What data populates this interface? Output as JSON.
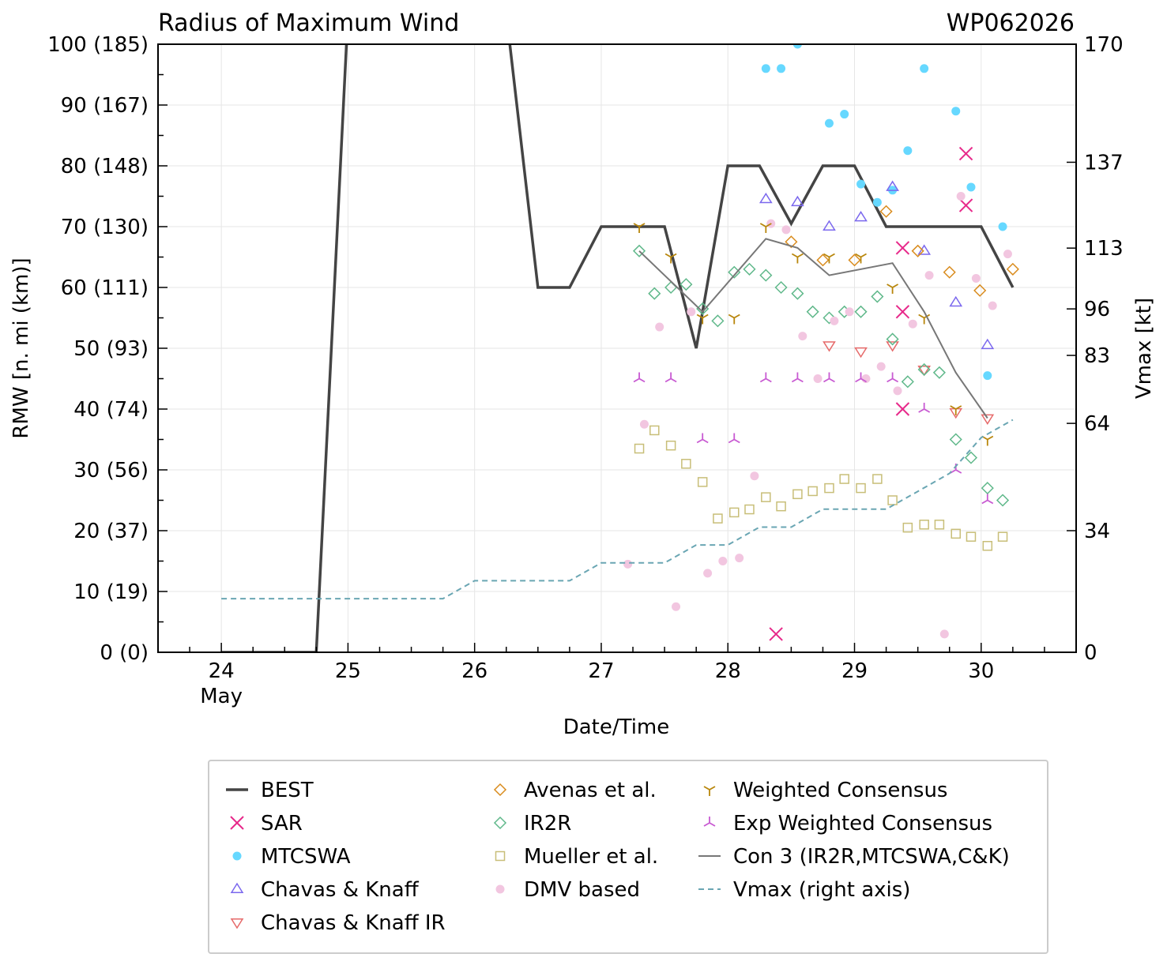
{
  "chart_data": {
    "type": "line",
    "title": "Radius of Maximum Wind",
    "title_right": "WP062026",
    "xlabel": "Date/Time",
    "ylabel": "RMW [n. mi (km)]",
    "ylabel_right": "Vmax [kt]",
    "x_units": "days (24 May = 24.0)",
    "xlim": [
      23.5,
      30.75
    ],
    "ylim": [
      0,
      100
    ],
    "ylim_right": [
      0,
      170
    ],
    "grid": true,
    "legend_position": "bottom",
    "x_ticks": [
      {
        "value": 24,
        "label": "24",
        "sublabel": "May"
      },
      {
        "value": 25,
        "label": "25",
        "sublabel": ""
      },
      {
        "value": 26,
        "label": "26",
        "sublabel": ""
      },
      {
        "value": 27,
        "label": "27",
        "sublabel": ""
      },
      {
        "value": 28,
        "label": "28",
        "sublabel": ""
      },
      {
        "value": 29,
        "label": "29",
        "sublabel": ""
      },
      {
        "value": 30,
        "label": "30",
        "sublabel": ""
      }
    ],
    "y_ticks_left": [
      {
        "value": 0,
        "label": "0 (0)"
      },
      {
        "value": 10,
        "label": "10 (19)"
      },
      {
        "value": 20,
        "label": "20 (37)"
      },
      {
        "value": 30,
        "label": "30 (56)"
      },
      {
        "value": 40,
        "label": "40 (74)"
      },
      {
        "value": 50,
        "label": "50 (93)"
      },
      {
        "value": 60,
        "label": "60 (111)"
      },
      {
        "value": 70,
        "label": "70 (130)"
      },
      {
        "value": 80,
        "label": "80 (148)"
      },
      {
        "value": 90,
        "label": "90 (167)"
      },
      {
        "value": 100,
        "label": "100 (185)"
      }
    ],
    "y_ticks_right": [
      {
        "value": 0,
        "label": "0"
      },
      {
        "value": 34,
        "label": "34"
      },
      {
        "value": 64,
        "label": "64"
      },
      {
        "value": 83,
        "label": "83"
      },
      {
        "value": 96,
        "label": "96"
      },
      {
        "value": 113,
        "label": "113"
      },
      {
        "value": 137,
        "label": "137"
      },
      {
        "value": 170,
        "label": "170"
      }
    ],
    "series": [
      {
        "name": "BEST",
        "kind": "line",
        "color": "#444444",
        "width": 3.5,
        "points": [
          [
            24.0,
            0
          ],
          [
            24.75,
            0
          ],
          [
            25.0,
            105
          ],
          [
            26.25,
            105
          ],
          [
            26.5,
            60
          ],
          [
            26.75,
            60
          ],
          [
            27.0,
            70
          ],
          [
            27.5,
            70
          ],
          [
            27.75,
            50
          ],
          [
            28.0,
            80
          ],
          [
            28.25,
            80
          ],
          [
            28.5,
            70.5
          ],
          [
            28.75,
            80
          ],
          [
            29.0,
            80
          ],
          [
            29.25,
            70
          ],
          [
            30.0,
            70
          ],
          [
            30.25,
            60
          ]
        ]
      },
      {
        "name": "SAR",
        "kind": "marker",
        "marker": "x",
        "color": "#e7298a",
        "points": [
          [
            28.38,
            3
          ],
          [
            29.38,
            66.5
          ],
          [
            29.38,
            56
          ],
          [
            29.38,
            40
          ],
          [
            29.88,
            82
          ],
          [
            29.88,
            73.5
          ]
        ]
      },
      {
        "name": "MTCSWA",
        "kind": "marker",
        "marker": "dot",
        "color": "#66d8ff",
        "points": [
          [
            28.3,
            96
          ],
          [
            28.42,
            96
          ],
          [
            28.55,
            100
          ],
          [
            28.8,
            87
          ],
          [
            28.92,
            88.5
          ],
          [
            29.05,
            77
          ],
          [
            29.18,
            74
          ],
          [
            29.3,
            76
          ],
          [
            29.42,
            82.5
          ],
          [
            29.55,
            96
          ],
          [
            29.8,
            89
          ],
          [
            29.92,
            76.5
          ],
          [
            30.05,
            45.5
          ],
          [
            30.17,
            70
          ]
        ]
      },
      {
        "name": "Chavas & Knaff",
        "kind": "marker",
        "marker": "tri-up",
        "color": "#7b68ee",
        "points": [
          [
            28.3,
            74.5
          ],
          [
            28.55,
            74
          ],
          [
            28.8,
            70
          ],
          [
            29.05,
            71.5
          ],
          [
            29.3,
            76.5
          ],
          [
            29.55,
            66
          ],
          [
            29.8,
            57.5
          ],
          [
            30.05,
            50.5
          ]
        ]
      },
      {
        "name": "Chavas & Knaff IR",
        "kind": "marker",
        "marker": "tri-down",
        "color": "#e66a6a",
        "points": [
          [
            28.8,
            50.5
          ],
          [
            29.05,
            49.5
          ],
          [
            29.3,
            50.5
          ],
          [
            29.55,
            46.5
          ],
          [
            29.8,
            39.5
          ],
          [
            30.05,
            38.5
          ]
        ]
      },
      {
        "name": "Avenas et al.",
        "kind": "marker",
        "marker": "diamond",
        "color": "#d98b1c",
        "points": [
          [
            28.5,
            67.5
          ],
          [
            28.75,
            64.5
          ],
          [
            29.0,
            64.5
          ],
          [
            29.25,
            72.5
          ],
          [
            29.5,
            66
          ],
          [
            29.75,
            62.5
          ],
          [
            29.99,
            59.5
          ],
          [
            30.25,
            63
          ]
        ]
      },
      {
        "name": "IR2R",
        "kind": "marker",
        "marker": "diamond",
        "color": "#5fb88a",
        "points": [
          [
            27.3,
            66
          ],
          [
            27.42,
            59
          ],
          [
            27.55,
            60
          ],
          [
            27.67,
            60.5
          ],
          [
            27.8,
            56.5
          ],
          [
            27.92,
            54.5
          ],
          [
            28.05,
            62.5
          ],
          [
            28.17,
            63
          ],
          [
            28.3,
            62
          ],
          [
            28.42,
            60
          ],
          [
            28.55,
            59
          ],
          [
            28.67,
            56
          ],
          [
            28.8,
            55
          ],
          [
            28.92,
            56
          ],
          [
            29.05,
            56
          ],
          [
            29.18,
            58.5
          ],
          [
            29.3,
            51.5
          ],
          [
            29.42,
            44.5
          ],
          [
            29.55,
            46.5
          ],
          [
            29.67,
            46
          ],
          [
            29.8,
            35
          ],
          [
            29.92,
            32
          ],
          [
            30.05,
            27
          ],
          [
            30.17,
            25
          ]
        ]
      },
      {
        "name": "Mueller et al.",
        "kind": "marker",
        "marker": "square",
        "color": "#c8be78",
        "points": [
          [
            27.3,
            33.5
          ],
          [
            27.42,
            36.5
          ],
          [
            27.55,
            34
          ],
          [
            27.67,
            31
          ],
          [
            27.8,
            28
          ],
          [
            27.92,
            22
          ],
          [
            28.05,
            23
          ],
          [
            28.17,
            23.5
          ],
          [
            28.3,
            25.5
          ],
          [
            28.42,
            24
          ],
          [
            28.55,
            26
          ],
          [
            28.67,
            26.5
          ],
          [
            28.8,
            27
          ],
          [
            28.92,
            28.5
          ],
          [
            29.05,
            27
          ],
          [
            29.18,
            28.5
          ],
          [
            29.3,
            25
          ],
          [
            29.42,
            20.5
          ],
          [
            29.55,
            21
          ],
          [
            29.67,
            21
          ],
          [
            29.8,
            19.5
          ],
          [
            29.92,
            19
          ],
          [
            30.05,
            17.5
          ],
          [
            30.17,
            19
          ]
        ]
      },
      {
        "name": "DMV based",
        "kind": "marker",
        "marker": "dot",
        "color": "#f2c6e0",
        "points": [
          [
            27.21,
            14.5
          ],
          [
            27.34,
            37.5
          ],
          [
            27.46,
            53.5
          ],
          [
            27.59,
            7.5
          ],
          [
            27.71,
            56
          ],
          [
            27.84,
            13
          ],
          [
            27.96,
            15
          ],
          [
            28.09,
            15.5
          ],
          [
            28.21,
            29
          ],
          [
            28.34,
            70.5
          ],
          [
            28.46,
            69.5
          ],
          [
            28.59,
            52
          ],
          [
            28.71,
            45
          ],
          [
            28.84,
            54.5
          ],
          [
            28.96,
            56
          ],
          [
            29.09,
            45
          ],
          [
            29.21,
            47
          ],
          [
            29.34,
            43
          ],
          [
            29.46,
            54
          ],
          [
            29.59,
            62
          ],
          [
            29.71,
            3
          ],
          [
            29.84,
            75
          ],
          [
            29.96,
            61.5
          ],
          [
            30.09,
            57
          ],
          [
            30.21,
            65.5
          ]
        ]
      },
      {
        "name": "Weighted Consensus",
        "kind": "marker",
        "marker": "tri-down-line",
        "color": "#b8860b",
        "points": [
          [
            27.3,
            70
          ],
          [
            27.55,
            65
          ],
          [
            27.8,
            55
          ],
          [
            28.05,
            55
          ],
          [
            28.3,
            70
          ],
          [
            28.55,
            65
          ],
          [
            28.8,
            65
          ],
          [
            29.05,
            65
          ],
          [
            29.3,
            60
          ],
          [
            29.55,
            55
          ],
          [
            29.8,
            40
          ],
          [
            30.05,
            35
          ]
        ]
      },
      {
        "name": "Exp Weighted Consensus",
        "kind": "marker",
        "marker": "tri-up-line",
        "color": "#c85ad2",
        "points": [
          [
            27.3,
            45
          ],
          [
            27.55,
            45
          ],
          [
            27.8,
            35
          ],
          [
            28.05,
            35
          ],
          [
            28.3,
            45
          ],
          [
            28.55,
            45
          ],
          [
            28.8,
            45
          ],
          [
            29.05,
            45
          ],
          [
            29.3,
            45
          ],
          [
            29.55,
            40
          ],
          [
            29.8,
            30
          ],
          [
            30.05,
            25
          ]
        ]
      },
      {
        "name": "Con 3 (IR2R,MTCSWA,C&K)",
        "kind": "line",
        "color": "#777777",
        "width": 2,
        "points": [
          [
            27.3,
            66
          ],
          [
            27.8,
            56
          ],
          [
            28.3,
            68
          ],
          [
            28.55,
            66.5
          ],
          [
            28.8,
            62
          ],
          [
            29.3,
            64
          ],
          [
            29.55,
            56
          ],
          [
            29.8,
            46
          ],
          [
            30.05,
            38.5
          ]
        ]
      },
      {
        "name": "Vmax (right axis)",
        "kind": "line",
        "axis": "right",
        "dashed": true,
        "color": "#6aa6b3",
        "width": 2,
        "points": [
          [
            24.0,
            15
          ],
          [
            25.75,
            15
          ],
          [
            26.0,
            20
          ],
          [
            26.75,
            20
          ],
          [
            27.0,
            25
          ],
          [
            27.5,
            25
          ],
          [
            27.75,
            30
          ],
          [
            28.0,
            30
          ],
          [
            28.25,
            35
          ],
          [
            28.5,
            35
          ],
          [
            28.75,
            40
          ],
          [
            29.25,
            40
          ],
          [
            29.5,
            45
          ],
          [
            29.75,
            50
          ],
          [
            30.0,
            60
          ],
          [
            30.25,
            65
          ]
        ]
      }
    ],
    "legend_columns": [
      [
        "BEST",
        "SAR",
        "MTCSWA",
        "Chavas & Knaff",
        "Chavas & Knaff IR"
      ],
      [
        "Avenas et al.",
        "IR2R",
        "Mueller et al.",
        "DMV based"
      ],
      [
        "Weighted Consensus",
        "Exp Weighted Consensus",
        "Con 3 (IR2R,MTCSWA,C&K)",
        "Vmax (right axis)"
      ]
    ]
  }
}
